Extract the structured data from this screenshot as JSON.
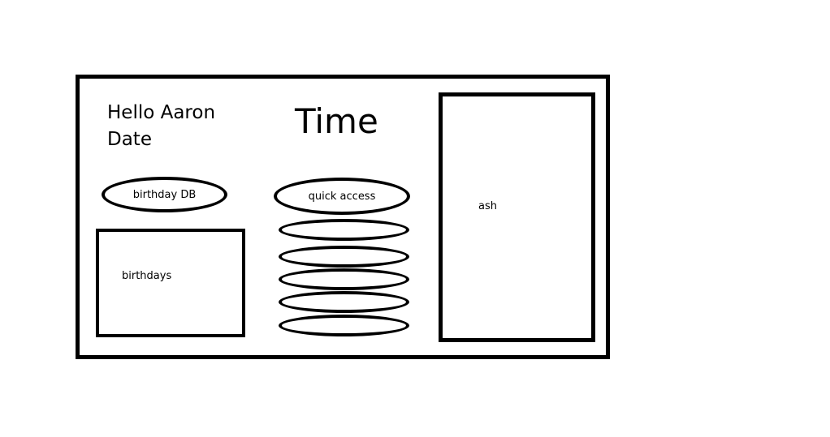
{
  "header": {
    "greeting": "Hello Aaron",
    "date": "Date",
    "time": "Time"
  },
  "birthday_panel": {
    "button_label": "birthday DB",
    "list_label": "birthdays"
  },
  "quick_access": {
    "label": "quick access",
    "slots": [
      "",
      "",
      "",
      "",
      ""
    ]
  },
  "side_panel": {
    "label": "ash"
  }
}
